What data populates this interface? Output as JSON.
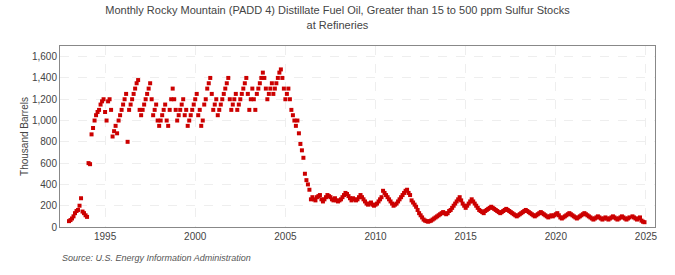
{
  "chart_data": {
    "type": "scatter",
    "title": "Monthly Rocky Mountain (PADD 4) Distillate Fuel Oil, Greater than 15 to 500 ppm Sulfur Stocks\nat Refineries",
    "ylabel": "Thousand Barrels",
    "source": "Source: U.S. Energy Information Administration",
    "color": "#cc0000",
    "marker": "square",
    "grid": true,
    "xlim": [
      1992.5,
      2025.5
    ],
    "xticks": [
      1995,
      2000,
      2005,
      2010,
      2015,
      2020,
      2025
    ],
    "ylim": [
      0,
      1700
    ],
    "yticks": [
      0,
      200,
      400,
      600,
      800,
      {
        "value": 1000,
        "label": "1,000"
      },
      {
        "value": 1200,
        "label": "1,200"
      },
      {
        "value": 1400,
        "label": "1,400"
      },
      {
        "value": 1600,
        "label": "1,600"
      }
    ],
    "x": [
      1993.0,
      1993.083,
      1993.167,
      1993.25,
      1993.333,
      1993.417,
      1993.5,
      1993.583,
      1993.667,
      1993.75,
      1993.833,
      1993.917,
      1994.0,
      1994.083,
      1994.167,
      1994.25,
      1994.333,
      1994.417,
      1994.5,
      1994.583,
      1994.667,
      1994.75,
      1994.833,
      1994.917,
      1995.0,
      1995.083,
      1995.167,
      1995.25,
      1995.333,
      1995.417,
      1995.5,
      1995.583,
      1995.667,
      1995.75,
      1995.833,
      1995.917,
      1996.0,
      1996.083,
      1996.167,
      1996.25,
      1996.333,
      1996.417,
      1996.5,
      1996.583,
      1996.667,
      1996.75,
      1996.833,
      1996.917,
      1997.0,
      1997.083,
      1997.167,
      1997.25,
      1997.333,
      1997.417,
      1997.5,
      1997.583,
      1997.667,
      1997.75,
      1997.833,
      1997.917,
      1998.0,
      1998.083,
      1998.167,
      1998.25,
      1998.333,
      1998.417,
      1998.5,
      1998.583,
      1998.667,
      1998.75,
      1998.833,
      1998.917,
      1999.0,
      1999.083,
      1999.167,
      1999.25,
      1999.333,
      1999.417,
      1999.5,
      1999.583,
      1999.667,
      1999.75,
      1999.833,
      1999.917,
      2000.0,
      2000.083,
      2000.167,
      2000.25,
      2000.333,
      2000.417,
      2000.5,
      2000.583,
      2000.667,
      2000.75,
      2000.833,
      2000.917,
      2001.0,
      2001.083,
      2001.167,
      2001.25,
      2001.333,
      2001.417,
      2001.5,
      2001.583,
      2001.667,
      2001.75,
      2001.833,
      2001.917,
      2002.0,
      2002.083,
      2002.167,
      2002.25,
      2002.333,
      2002.417,
      2002.5,
      2002.583,
      2002.667,
      2002.75,
      2002.833,
      2002.917,
      2003.0,
      2003.083,
      2003.167,
      2003.25,
      2003.333,
      2003.417,
      2003.5,
      2003.583,
      2003.667,
      2003.75,
      2003.833,
      2003.917,
      2004.0,
      2004.083,
      2004.167,
      2004.25,
      2004.333,
      2004.417,
      2004.5,
      2004.583,
      2004.667,
      2004.75,
      2004.833,
      2004.917,
      2005.0,
      2005.083,
      2005.167,
      2005.25,
      2005.333,
      2005.417,
      2005.5,
      2005.583,
      2005.667,
      2005.75,
      2005.833,
      2005.917,
      2006.0,
      2006.083,
      2006.167,
      2006.25,
      2006.333,
      2006.417,
      2006.5,
      2006.583,
      2006.667,
      2006.75,
      2006.833,
      2006.917,
      2007.0,
      2007.083,
      2007.167,
      2007.25,
      2007.333,
      2007.417,
      2007.5,
      2007.583,
      2007.667,
      2007.75,
      2007.833,
      2007.917,
      2008.0,
      2008.083,
      2008.167,
      2008.25,
      2008.333,
      2008.417,
      2008.5,
      2008.583,
      2008.667,
      2008.75,
      2008.833,
      2008.917,
      2009.0,
      2009.083,
      2009.167,
      2009.25,
      2009.333,
      2009.417,
      2009.5,
      2009.583,
      2009.667,
      2009.75,
      2009.833,
      2009.917,
      2010.0,
      2010.083,
      2010.167,
      2010.25,
      2010.333,
      2010.417,
      2010.5,
      2010.583,
      2010.667,
      2010.75,
      2010.833,
      2010.917,
      2011.0,
      2011.083,
      2011.167,
      2011.25,
      2011.333,
      2011.417,
      2011.5,
      2011.583,
      2011.667,
      2011.75,
      2011.833,
      2011.917,
      2012.0,
      2012.083,
      2012.167,
      2012.25,
      2012.333,
      2012.417,
      2012.5,
      2012.583,
      2012.667,
      2012.75,
      2012.833,
      2012.917,
      2013.0,
      2013.083,
      2013.167,
      2013.25,
      2013.333,
      2013.417,
      2013.5,
      2013.583,
      2013.667,
      2013.75,
      2013.833,
      2013.917,
      2014.0,
      2014.083,
      2014.167,
      2014.25,
      2014.333,
      2014.417,
      2014.5,
      2014.583,
      2014.667,
      2014.75,
      2014.833,
      2014.917,
      2015.0,
      2015.083,
      2015.167,
      2015.25,
      2015.333,
      2015.417,
      2015.5,
      2015.583,
      2015.667,
      2015.75,
      2015.833,
      2015.917,
      2016.0,
      2016.083,
      2016.167,
      2016.25,
      2016.333,
      2016.417,
      2016.5,
      2016.583,
      2016.667,
      2016.75,
      2016.833,
      2016.917,
      2017.0,
      2017.083,
      2017.167,
      2017.25,
      2017.333,
      2017.417,
      2017.5,
      2017.583,
      2017.667,
      2017.75,
      2017.833,
      2017.917,
      2018.0,
      2018.083,
      2018.167,
      2018.25,
      2018.333,
      2018.417,
      2018.5,
      2018.583,
      2018.667,
      2018.75,
      2018.833,
      2018.917,
      2019.0,
      2019.083,
      2019.167,
      2019.25,
      2019.333,
      2019.417,
      2019.5,
      2019.583,
      2019.667,
      2019.75,
      2019.833,
      2019.917,
      2020.0,
      2020.083,
      2020.167,
      2020.25,
      2020.333,
      2020.417,
      2020.5,
      2020.583,
      2020.667,
      2020.75,
      2020.833,
      2020.917,
      2021.0,
      2021.083,
      2021.167,
      2021.25,
      2021.333,
      2021.417,
      2021.5,
      2021.583,
      2021.667,
      2021.75,
      2021.833,
      2021.917,
      2022.0,
      2022.083,
      2022.167,
      2022.25,
      2022.333,
      2022.417,
      2022.5,
      2022.583,
      2022.667,
      2022.75,
      2022.833,
      2022.917,
      2023.0,
      2023.083,
      2023.167,
      2023.25,
      2023.333,
      2023.417,
      2023.5,
      2023.583,
      2023.667,
      2023.75,
      2023.833,
      2023.917,
      2024.0,
      2024.083,
      2024.25,
      2024.333,
      2024.417,
      2024.5,
      2024.583,
      2024.667,
      2024.75,
      2024.833,
      2024.917
    ],
    "values": [
      55,
      65,
      80,
      100,
      130,
      150,
      160,
      200,
      270,
      145,
      130,
      110,
      95,
      600,
      590,
      870,
      930,
      1000,
      1050,
      1080,
      1100,
      1150,
      1180,
      1200,
      1080,
      1000,
      1180,
      1200,
      1100,
      850,
      900,
      950,
      880,
      1000,
      1050,
      1100,
      1150,
      1200,
      1250,
      800,
      1100,
      1150,
      1200,
      1250,
      1300,
      1350,
      1380,
      1100,
      1050,
      1100,
      1150,
      1200,
      1250,
      1300,
      1350,
      1200,
      1050,
      1100,
      1150,
      1000,
      950,
      1000,
      1050,
      1100,
      1150,
      1000,
      950,
      1100,
      1200,
      1300,
      1200,
      1100,
      1000,
      1050,
      1100,
      1150,
      1200,
      1050,
      1100,
      950,
      1000,
      1050,
      1100,
      1150,
      1200,
      1250,
      1050,
      1100,
      950,
      1000,
      1150,
      1200,
      1300,
      1350,
      1400,
      1250,
      1100,
      1150,
      1200,
      1050,
      1100,
      1150,
      1200,
      1250,
      1300,
      1350,
      1400,
      1200,
      1100,
      1150,
      1200,
      1250,
      1100,
      1150,
      1200,
      1250,
      1300,
      1350,
      1400,
      1250,
      1100,
      1200,
      1300,
      1200,
      1100,
      1250,
      1300,
      1350,
      1400,
      1450,
      1400,
      1300,
      1200,
      1250,
      1300,
      1350,
      1250,
      1300,
      1350,
      1400,
      1450,
      1480,
      1400,
      1300,
      1200,
      1250,
      1300,
      1200,
      1100,
      1050,
      1000,
      950,
      1000,
      880,
      780,
      720,
      650,
      500,
      440,
      400,
      350,
      260,
      280,
      260,
      250,
      280,
      290,
      300,
      260,
      240,
      260,
      280,
      300,
      290,
      280,
      260,
      250,
      270,
      250,
      240,
      250,
      260,
      280,
      300,
      320,
      310,
      290,
      270,
      250,
      270,
      260,
      250,
      260,
      280,
      300,
      280,
      260,
      240,
      220,
      210,
      220,
      230,
      210,
      200,
      210,
      220,
      240,
      260,
      280,
      340,
      320,
      300,
      280,
      260,
      240,
      220,
      200,
      210,
      220,
      240,
      260,
      280,
      300,
      320,
      340,
      350,
      320,
      300,
      250,
      230,
      210,
      190,
      160,
      130,
      110,
      90,
      70,
      60,
      55,
      50,
      55,
      60,
      70,
      80,
      90,
      100,
      110,
      120,
      130,
      140,
      130,
      120,
      130,
      150,
      160,
      180,
      200,
      220,
      240,
      260,
      280,
      250,
      220,
      200,
      180,
      200,
      220,
      240,
      260,
      240,
      220,
      200,
      180,
      160,
      150,
      140,
      130,
      150,
      160,
      170,
      180,
      190,
      180,
      170,
      160,
      150,
      140,
      130,
      140,
      150,
      160,
      170,
      160,
      150,
      140,
      130,
      120,
      110,
      100,
      110,
      120,
      130,
      140,
      150,
      160,
      150,
      140,
      130,
      120,
      110,
      100,
      110,
      120,
      130,
      140,
      130,
      120,
      110,
      100,
      90,
      100,
      110,
      100,
      110,
      120,
      130,
      110,
      90,
      80,
      90,
      100,
      110,
      120,
      130,
      120,
      110,
      100,
      90,
      80,
      90,
      100,
      110,
      120,
      130,
      120,
      110,
      100,
      90,
      80,
      70,
      80,
      90,
      100,
      90,
      80,
      70,
      80,
      90,
      80,
      70,
      80,
      90,
      100,
      90,
      80,
      70,
      80,
      90,
      100,
      90,
      80,
      70,
      80,
      90,
      100,
      90,
      80,
      70,
      80,
      90,
      60,
      50,
      45
    ]
  }
}
